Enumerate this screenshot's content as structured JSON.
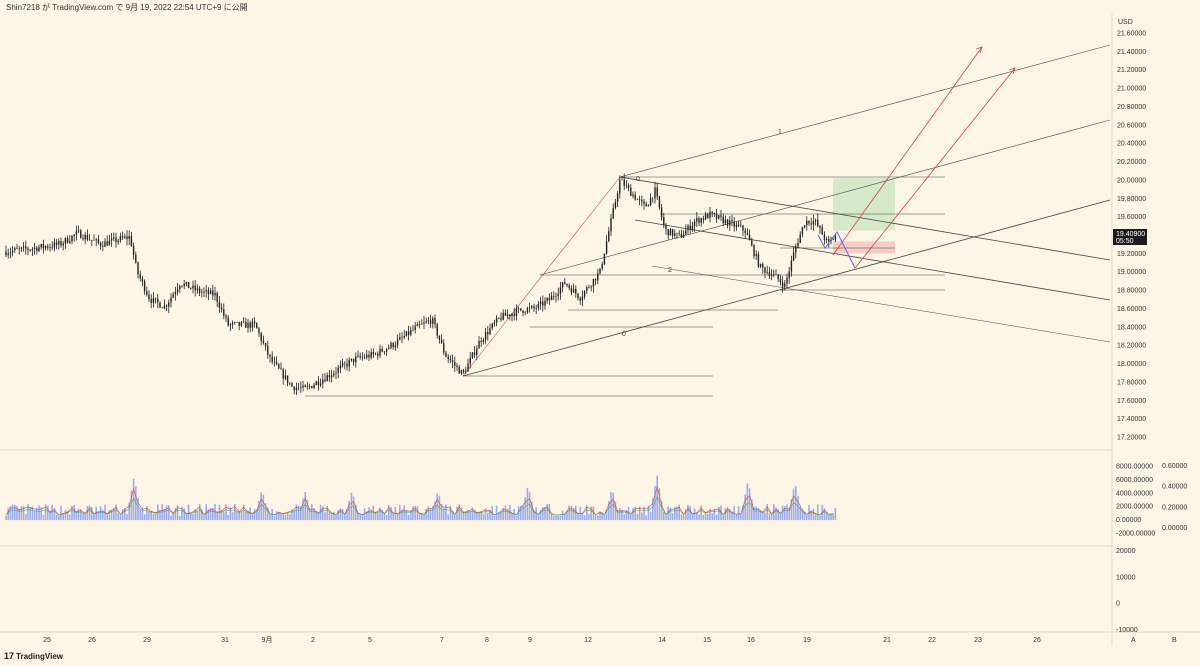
{
  "header": {
    "text": "Shin7218 が TradingView.com で 9月 19, 2022 22:54 UTC+9 に公開"
  },
  "footer": {
    "brand_mark": "17",
    "brand": "TradingView"
  },
  "price_axis": {
    "unit": "USD",
    "labels": [
      "21.60000",
      "21.40000",
      "21.20000",
      "21.00000",
      "20.80000",
      "20.60000",
      "20.40000",
      "20.20000",
      "20.00000",
      "19.80000",
      "19.60000",
      "19.40000",
      "19.20000",
      "19.00000",
      "18.80000",
      "18.60000",
      "18.40000",
      "18.20000",
      "18.00000",
      "17.80000",
      "17.60000",
      "17.40000",
      "17.20000"
    ],
    "current_price": "19.40900",
    "countdown": "05:50"
  },
  "volume_axis": {
    "labels": [
      "8000.00000",
      "6000.00000",
      "4000.00000",
      "2000.00000",
      "0.00000",
      "-2000.00000"
    ]
  },
  "oscillator_axis": {
    "labels": [
      "0.60000",
      "0.40000",
      "0.20000",
      "0.00000"
    ]
  },
  "lower_axis": {
    "labels": [
      "20000",
      "10000",
      "0",
      "-10000"
    ]
  },
  "time_axis": {
    "labels": [
      "25",
      "26",
      "29",
      "31",
      "9月",
      "2",
      "5",
      "7",
      "8",
      "9",
      "12",
      "14",
      "15",
      "16",
      "19",
      "21",
      "22",
      "23",
      "26"
    ],
    "scale_buttons": [
      "A",
      "B"
    ]
  },
  "drawings": {
    "fib_labels": [
      "1",
      "0",
      "2",
      "0"
    ]
  },
  "colors": {
    "background": "#fdf5e6",
    "candle": "#222222",
    "volume_bar": "#7b93ef",
    "volume_line_red": "#c84a4a",
    "volume_line_green": "#3e9a5a",
    "target_zone": "#cfe8c4",
    "stop_zone": "#f4c4c0",
    "projection_arrow": "#c44545",
    "path_arrow": "#5a6be0",
    "grid_line": "#444444"
  },
  "chart_data": {
    "type": "candlestick",
    "symbol_currency": "USD",
    "ylim": [
      17.2,
      21.6
    ],
    "x": [
      "25",
      "26",
      "29",
      "31",
      "9月",
      "2",
      "5",
      "7",
      "8",
      "9",
      "12",
      "14",
      "15",
      "16",
      "19"
    ],
    "close": [
      19.22,
      19.3,
      19.28,
      18.45,
      18.4,
      17.95,
      18.05,
      17.85,
      18.3,
      18.55,
      19.9,
      19.35,
      19.58,
      19.1,
      19.409
    ],
    "high": [
      19.3,
      19.48,
      19.5,
      18.92,
      18.62,
      18.05,
      18.3,
      18.55,
      18.55,
      18.8,
      20.02,
      19.82,
      19.7,
      19.55,
      19.66
    ],
    "low": [
      19.18,
      19.17,
      18.7,
      18.38,
      17.88,
      17.62,
      17.95,
      17.85,
      18.2,
      18.45,
      18.75,
      19.18,
      19.28,
      18.82,
      19.2
    ],
    "last_price": 19.409,
    "annotations": {
      "fib_levels": [
        "1",
        "0",
        "2",
        "0"
      ],
      "target_zone": [
        19.45,
        20.02
      ],
      "stop_zone": [
        19.2,
        19.33
      ]
    },
    "volume": {
      "ylim": [
        -2000,
        8000
      ],
      "peak_values": [
        6500,
        4600,
        4300,
        4400,
        5200,
        5400,
        4600,
        6800,
        5900,
        5700
      ]
    },
    "oscillator_ylim": [
      0,
      0.6
    ],
    "lower_pane_ylim": [
      -10000,
      20000
    ]
  }
}
